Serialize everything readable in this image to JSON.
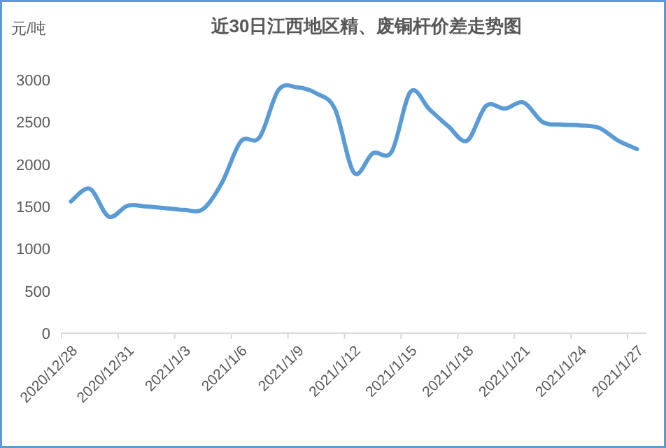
{
  "chart_data": {
    "type": "line",
    "title": "近30日江西地区精、废铜杆价差走势图",
    "ylabel": "元/吨",
    "categories": [
      "2020/12/28",
      null,
      null,
      "2020/12/31",
      null,
      null,
      "2021/1/3",
      null,
      null,
      "2021/1/6",
      null,
      null,
      "2021/1/9",
      null,
      null,
      "2021/1/12",
      null,
      null,
      "2021/1/15",
      null,
      null,
      "2021/1/18",
      null,
      null,
      "2021/1/21",
      null,
      null,
      "2021/1/24",
      null,
      null,
      "2021/1/27"
    ],
    "series": [
      {
        "color": "#5b9bd5",
        "values": [
          1560,
          1710,
          1380,
          1510,
          1500,
          1480,
          1460,
          1470,
          1780,
          2270,
          2320,
          2880,
          2910,
          2840,
          2650,
          1900,
          2130,
          2150,
          2860,
          2650,
          2450,
          2280,
          2690,
          2660,
          2730,
          2500,
          2470,
          2460,
          2430,
          2280,
          2180
        ]
      }
    ],
    "ylim": [
      0,
      3000
    ],
    "yticks": [
      0,
      500,
      1000,
      1500,
      2000,
      2500,
      3000
    ],
    "marker": "none",
    "line_style": "solid"
  }
}
